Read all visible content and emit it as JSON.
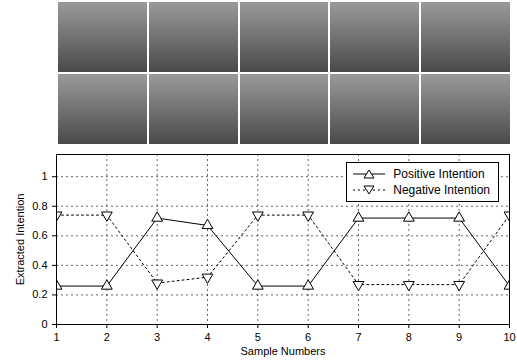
{
  "chart_data": {
    "type": "line",
    "x_label": "Sample Numbers",
    "y_label": "Extracted Intention",
    "x": [
      1,
      2,
      3,
      4,
      5,
      6,
      7,
      8,
      9,
      10
    ],
    "series": [
      {
        "name": "Positive Intention",
        "color": "#000000",
        "marker": "triangle-up",
        "line_style": "solid",
        "values": [
          0.26,
          0.26,
          0.72,
          0.67,
          0.26,
          0.26,
          0.72,
          0.72,
          0.72,
          0.26
        ]
      },
      {
        "name": "Negative Intention",
        "color": "#000000",
        "marker": "triangle-down",
        "line_style": "dotted",
        "values": [
          0.74,
          0.74,
          0.28,
          0.32,
          0.74,
          0.74,
          0.27,
          0.27,
          0.27,
          0.74
        ]
      }
    ],
    "xlim": [
      1,
      10
    ],
    "xticks": [
      1,
      2,
      3,
      4,
      5,
      6,
      7,
      8,
      9,
      10
    ],
    "ylim": [
      0,
      1.15
    ],
    "yticks": [
      0,
      0.2,
      0.4,
      0.6,
      0.8,
      1
    ],
    "grid": true,
    "legend": "upper right"
  }
}
